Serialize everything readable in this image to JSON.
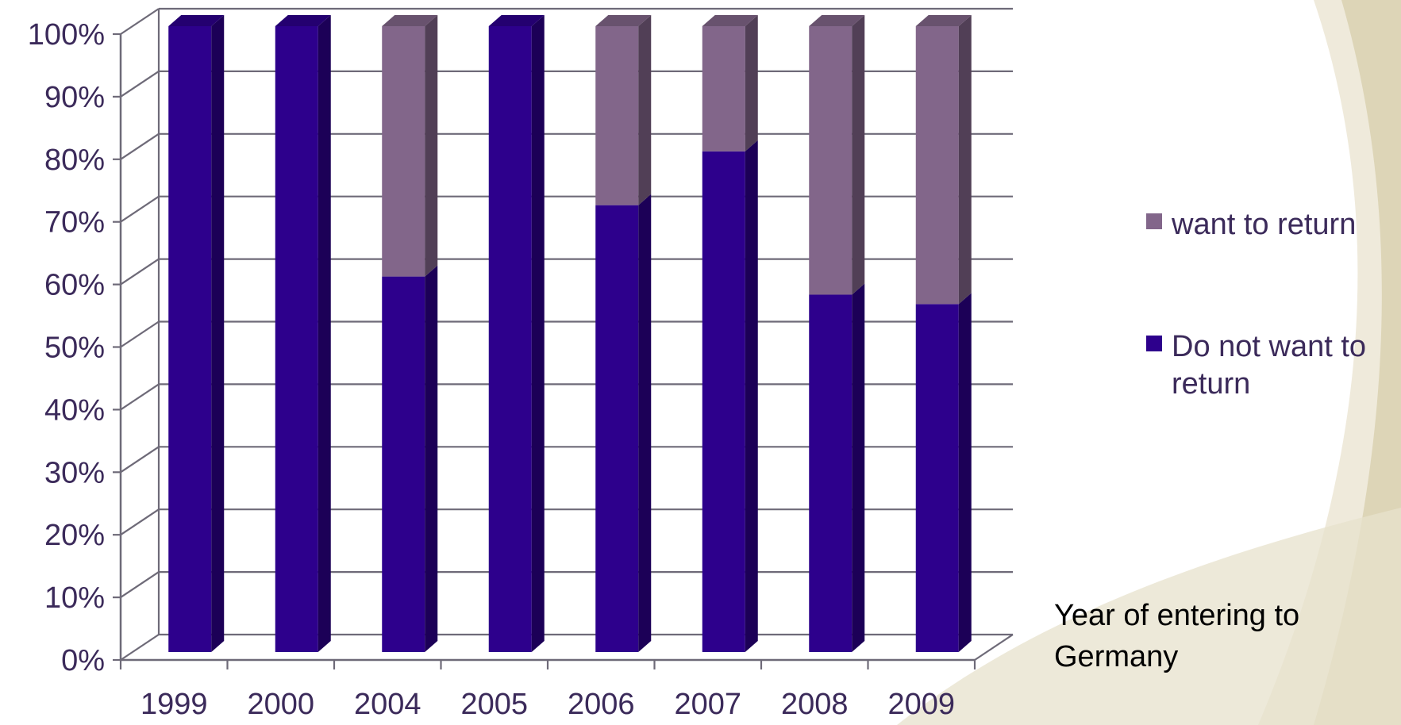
{
  "chart_data": {
    "type": "bar",
    "stacked": true,
    "three_d": true,
    "categories": [
      "1999",
      "2000",
      "2004",
      "2005",
      "2006",
      "2007",
      "2008",
      "2009"
    ],
    "series": [
      {
        "name": "Do not want to return",
        "legend_lines": [
          "Do not want to",
          "return"
        ],
        "color": "#2d008c",
        "values": [
          100,
          100,
          60,
          100,
          71.4,
          80,
          57.1,
          55.6
        ]
      },
      {
        "name": "want to return",
        "legend_lines": [
          "want to return"
        ],
        "color": "#82668a",
        "values": [
          0,
          0,
          40,
          0,
          28.6,
          20,
          42.9,
          44.4
        ]
      }
    ],
    "y_ticks": [
      "0%",
      "10%",
      "20%",
      "30%",
      "40%",
      "50%",
      "60%",
      "70%",
      "80%",
      "90%",
      "100%"
    ],
    "ylim": [
      0,
      100
    ],
    "x_title_lines": [
      "Year of entering to",
      "Germany"
    ],
    "legend_position": "right",
    "grid": true
  },
  "colors": {
    "grid": "#6e6a78",
    "tick_text": "#3b2a5a",
    "background_swoosh_light": "#efeadb",
    "background_swoosh_dark": "#cfc6a2"
  }
}
